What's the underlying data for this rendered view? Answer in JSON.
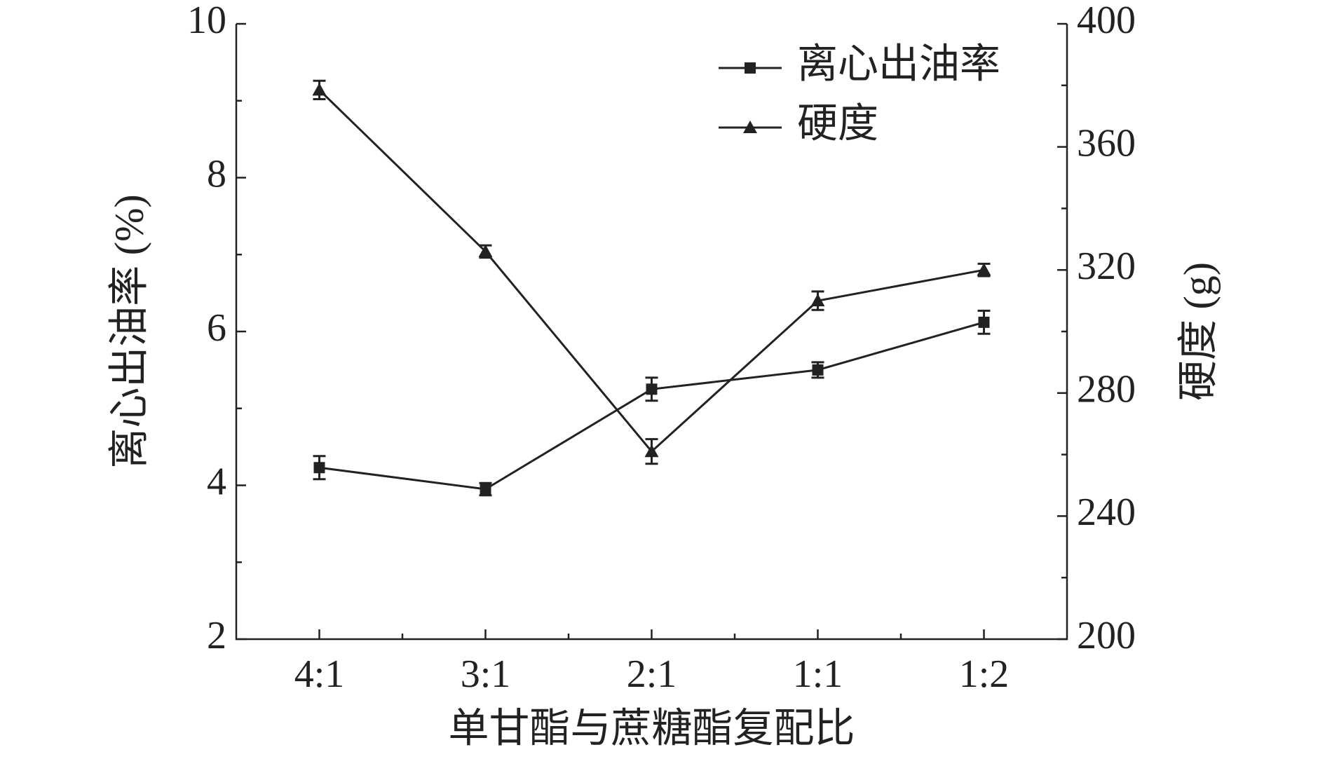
{
  "chart_data": {
    "type": "line",
    "x_label": "单甘酯与蔗糖酯复配比",
    "y_label": "离心出油率 (%)",
    "y2_label": "硬度 (g)",
    "categories": [
      "4:1",
      "3:1",
      "2:1",
      "1:1",
      "1:2"
    ],
    "series": [
      {
        "name": "离心出油率",
        "color": "#222222",
        "marker": "square",
        "values": [
          4.23,
          3.95,
          5.25,
          5.5,
          6.12
        ],
        "errors": [
          0.15,
          0.08,
          0.15,
          0.1,
          0.15
        ]
      },
      {
        "name": "硬度",
        "color": "#222222",
        "marker": "triangle",
        "axis": "y2",
        "values": [
          378.5,
          326,
          261,
          310,
          320
        ],
        "errors": [
          3,
          2,
          4,
          3,
          2
        ]
      }
    ],
    "ylim": [
      2,
      10
    ],
    "yticks": [
      2,
      4,
      6,
      8,
      10
    ],
    "y2lim": [
      200,
      400
    ],
    "y2ticks": [
      200,
      240,
      280,
      320,
      360,
      400
    ],
    "legend": "upper right"
  }
}
